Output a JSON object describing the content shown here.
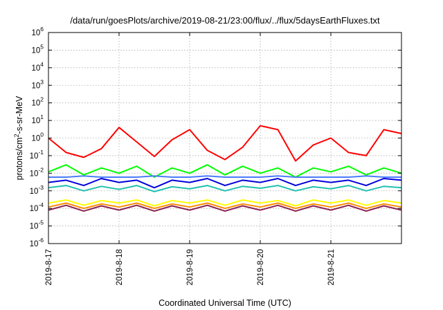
{
  "chart_data": {
    "type": "line",
    "title": "/data/run/goesPlots/archive/2019-08-21/23:00/flux/../flux/5daysEarthFluxes.txt",
    "xlabel": "Coordinated Universal Time (UTC)",
    "ylabel": "protons/cm2-s-sr-MeV",
    "y_scale": "log",
    "ylim": [
      1e-06,
      1000000.0
    ],
    "xlim": [
      "2019-08-17",
      "2019-08-22"
    ],
    "grid": true,
    "legend": "none",
    "x_ticks": [
      "2019-8-17",
      "2019-8-18",
      "2019-8-19",
      "2019-8-20",
      "2019-8-21"
    ],
    "y_ticks": [
      {
        "base": "10",
        "exp": "-6"
      },
      {
        "base": "10",
        "exp": "-5"
      },
      {
        "base": "10",
        "exp": "-4"
      },
      {
        "base": "10",
        "exp": "-3"
      },
      {
        "base": "10",
        "exp": "-2"
      },
      {
        "base": "10",
        "exp": "-1"
      },
      {
        "base": "10",
        "exp": "0"
      },
      {
        "base": "10",
        "exp": "1"
      },
      {
        "base": "10",
        "exp": "2"
      },
      {
        "base": "10",
        "exp": "3"
      },
      {
        "base": "10",
        "exp": "4"
      },
      {
        "base": "10",
        "exp": "5"
      },
      {
        "base": "10",
        "exp": "6"
      }
    ],
    "x": [
      "2019-08-17 00:00",
      "2019-08-17 06:00",
      "2019-08-17 12:00",
      "2019-08-17 18:00",
      "2019-08-18 00:00",
      "2019-08-18 06:00",
      "2019-08-18 12:00",
      "2019-08-18 18:00",
      "2019-08-19 00:00",
      "2019-08-19 06:00",
      "2019-08-19 12:00",
      "2019-08-19 18:00",
      "2019-08-20 00:00",
      "2019-08-20 06:00",
      "2019-08-20 12:00",
      "2019-08-20 18:00",
      "2019-08-21 00:00",
      "2019-08-21 06:00",
      "2019-08-21 12:00",
      "2019-08-21 18:00",
      "2019-08-22 00:00"
    ],
    "series": [
      {
        "color": "#ff0000",
        "values": [
          1.0,
          0.15,
          0.08,
          0.25,
          4.0,
          0.6,
          0.09,
          0.8,
          3.0,
          0.2,
          0.06,
          0.3,
          5.0,
          3.0,
          0.05,
          0.4,
          1.0,
          0.15,
          0.1,
          3.0,
          1.8
        ]
      },
      {
        "color": "#00ff00",
        "values": [
          0.012,
          0.03,
          0.008,
          0.02,
          0.01,
          0.025,
          0.006,
          0.02,
          0.01,
          0.03,
          0.008,
          0.025,
          0.01,
          0.02,
          0.006,
          0.02,
          0.012,
          0.025,
          0.008,
          0.02,
          0.01
        ]
      },
      {
        "color": "#4a7bff",
        "values": [
          0.006,
          0.006,
          0.007,
          0.006,
          0.006,
          0.006,
          0.007,
          0.006,
          0.006,
          0.007,
          0.006,
          0.006,
          0.006,
          0.007,
          0.006,
          0.006,
          0.006,
          0.006,
          0.007,
          0.006,
          0.006
        ]
      },
      {
        "color": "#0000dd",
        "values": [
          0.003,
          0.004,
          0.002,
          0.005,
          0.003,
          0.004,
          0.0015,
          0.004,
          0.003,
          0.005,
          0.002,
          0.004,
          0.003,
          0.005,
          0.002,
          0.004,
          0.003,
          0.004,
          0.002,
          0.005,
          0.004
        ]
      },
      {
        "color": "#20c0b0",
        "values": [
          0.0015,
          0.002,
          0.001,
          0.0018,
          0.0012,
          0.002,
          0.0009,
          0.0017,
          0.0013,
          0.002,
          0.001,
          0.0018,
          0.0014,
          0.002,
          0.001,
          0.0017,
          0.0013,
          0.002,
          0.001,
          0.0018,
          0.0015
        ]
      },
      {
        "color": "#ffff00",
        "values": [
          0.0002,
          0.0003,
          0.00015,
          0.00028,
          0.0002,
          0.0003,
          0.00014,
          0.00028,
          0.0002,
          0.0003,
          0.00015,
          0.0003,
          0.0002,
          0.00028,
          0.00014,
          0.0003,
          0.0002,
          0.0003,
          0.00015,
          0.00028,
          0.0002
        ]
      },
      {
        "color": "#ff8c00",
        "values": [
          0.00012,
          0.0002,
          0.0001,
          0.00018,
          0.00012,
          0.0002,
          0.0001,
          0.00018,
          0.00012,
          0.0002,
          0.0001,
          0.00018,
          0.00012,
          0.0002,
          0.0001,
          0.00018,
          0.00012,
          0.0002,
          0.0001,
          0.00018,
          0.00012
        ]
      },
      {
        "color": "#8b2252",
        "values": [
          8e-05,
          0.00015,
          7e-05,
          0.00014,
          8e-05,
          0.00015,
          7e-05,
          0.00014,
          8e-05,
          0.00015,
          7e-05,
          0.00014,
          8e-05,
          0.00015,
          7e-05,
          0.00014,
          8e-05,
          0.00015,
          7e-05,
          0.00014,
          8e-05
        ]
      }
    ]
  }
}
